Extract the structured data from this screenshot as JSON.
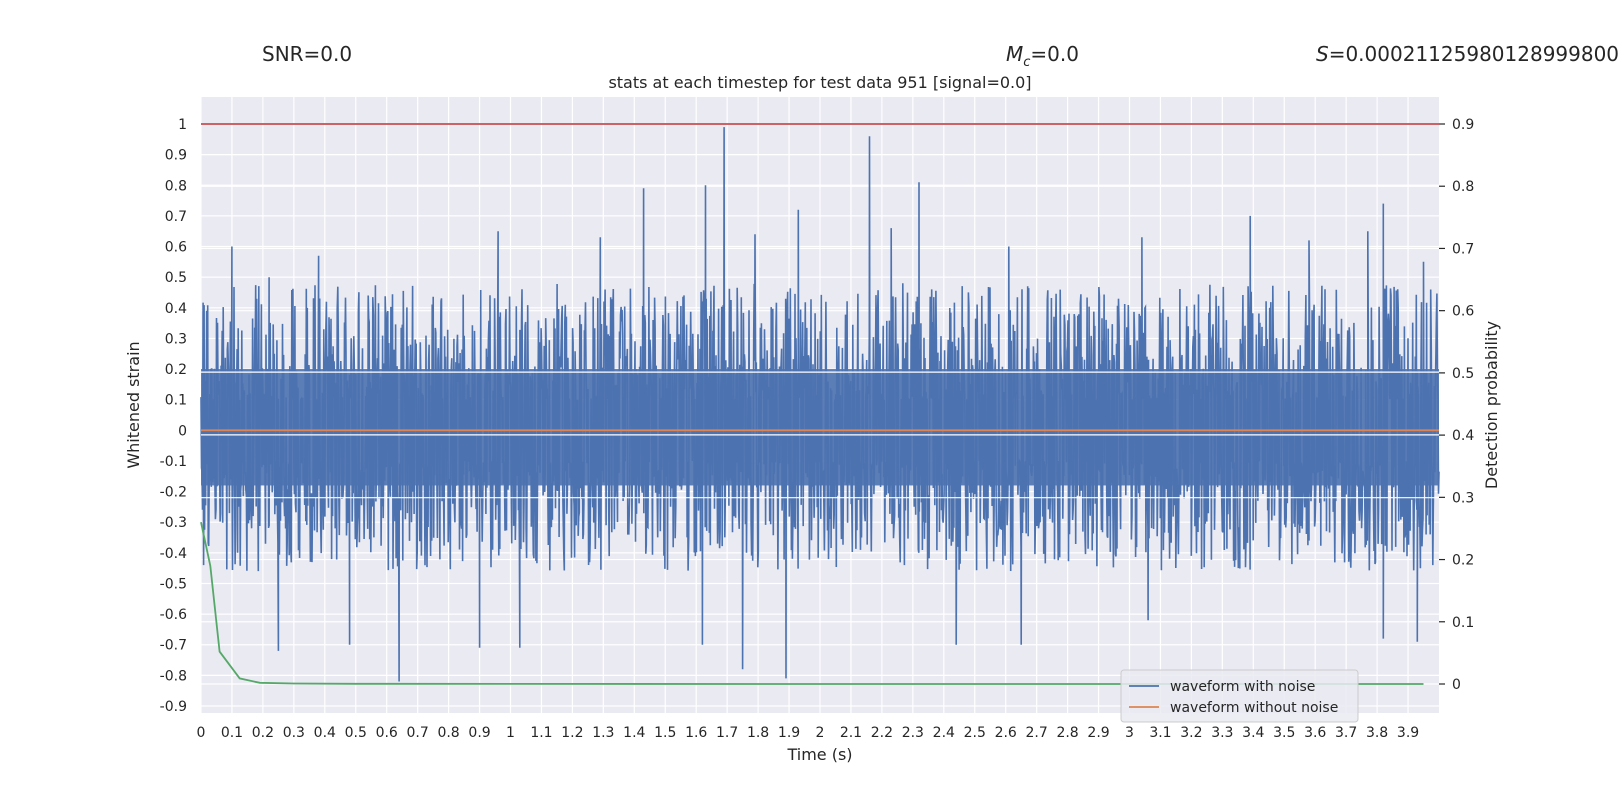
{
  "headers": {
    "snr": "SNR=0.0",
    "mc_symbol": "M",
    "mc_sub": "c",
    "mc_value": "=0.0",
    "s_symbol": "S",
    "s_value": "=0.00021125980128999800"
  },
  "colors": {
    "noisy": "#4c72b0",
    "clean": "#dd8452",
    "prob": "#55a868",
    "threshold": "#c44e52",
    "plot_bg": "#eaeaf2",
    "grid": "#ffffff"
  },
  "chart_data": {
    "type": "line",
    "title": "stats at each timestep for test data 951 [signal=0.0]",
    "xlabel": "Time (s)",
    "ylabel": "Whitened strain",
    "y2label": "Detection probability",
    "xlim": [
      0.0,
      4.0
    ],
    "ylim": [
      -0.9,
      1.0
    ],
    "y2lim": [
      -0.04,
      0.92
    ],
    "x_ticks": [
      0.0,
      0.1,
      0.2,
      0.3,
      0.4,
      0.5,
      0.6,
      0.7,
      0.8,
      0.9,
      1.0,
      1.1,
      1.2,
      1.3,
      1.4,
      1.5,
      1.6,
      1.7,
      1.8,
      1.9,
      2.0,
      2.1,
      2.2,
      2.3,
      2.4,
      2.5,
      2.6,
      2.7,
      2.8,
      2.9,
      3.0,
      3.1,
      3.2,
      3.3,
      3.4,
      3.5,
      3.6,
      3.7,
      3.8,
      3.9
    ],
    "y_ticks": [
      -0.9,
      -0.8,
      -0.7,
      -0.6,
      -0.5,
      -0.4,
      -0.3,
      -0.2,
      -0.1,
      0.0,
      0.1,
      0.2,
      0.3,
      0.4,
      0.5,
      0.6,
      0.7,
      0.8,
      0.9,
      1.0
    ],
    "y2_ticks": [
      0.0,
      0.1,
      0.2,
      0.3,
      0.4,
      0.5,
      0.6,
      0.7,
      0.8,
      0.9
    ],
    "grid": true,
    "legend_position": "bottom-right",
    "series": [
      {
        "name": "waveform with noise",
        "axis": "left",
        "style": "dense-noise",
        "x_range": [
          0.0,
          4.0
        ],
        "peaks": [
          {
            "x": 0.1,
            "y": 0.6
          },
          {
            "x": 0.22,
            "y": 0.5
          },
          {
            "x": 0.38,
            "y": 0.57
          },
          {
            "x": 0.96,
            "y": 0.65
          },
          {
            "x": 1.29,
            "y": 0.63
          },
          {
            "x": 1.43,
            "y": 0.79
          },
          {
            "x": 1.63,
            "y": 0.8
          },
          {
            "x": 1.69,
            "y": 0.99
          },
          {
            "x": 1.79,
            "y": 0.64
          },
          {
            "x": 1.93,
            "y": 0.72
          },
          {
            "x": 2.16,
            "y": 0.96
          },
          {
            "x": 2.23,
            "y": 0.66
          },
          {
            "x": 2.32,
            "y": 0.81
          },
          {
            "x": 2.61,
            "y": 0.6
          },
          {
            "x": 3.04,
            "y": 0.63
          },
          {
            "x": 3.39,
            "y": 0.7
          },
          {
            "x": 3.58,
            "y": 0.62
          },
          {
            "x": 3.77,
            "y": 0.65
          },
          {
            "x": 3.82,
            "y": 0.74
          },
          {
            "x": 3.95,
            "y": 0.55
          }
        ],
        "troughs": [
          {
            "x": 0.25,
            "y": -0.72
          },
          {
            "x": 0.48,
            "y": -0.7
          },
          {
            "x": 0.64,
            "y": -0.82
          },
          {
            "x": 0.9,
            "y": -0.71
          },
          {
            "x": 1.03,
            "y": -0.71
          },
          {
            "x": 1.62,
            "y": -0.7
          },
          {
            "x": 1.75,
            "y": -0.78
          },
          {
            "x": 1.89,
            "y": -0.81
          },
          {
            "x": 2.44,
            "y": -0.7
          },
          {
            "x": 2.65,
            "y": -0.7
          },
          {
            "x": 3.06,
            "y": -0.62
          },
          {
            "x": 3.82,
            "y": -0.68
          },
          {
            "x": 3.93,
            "y": -0.69
          }
        ]
      },
      {
        "name": "waveform without noise",
        "axis": "left",
        "x": [
          0.0,
          4.0
        ],
        "y": [
          0.0,
          0.0
        ]
      },
      {
        "axis": "right",
        "x": [
          0.0,
          0.03,
          0.06,
          0.125,
          0.19,
          0.3,
          0.5,
          1.0,
          2.0,
          3.0,
          3.95
        ],
        "y": [
          0.26,
          0.19,
          0.052,
          0.009,
          0.002,
          0.0008,
          0.0003,
          0.0001,
          0.0,
          0.0,
          0.0
        ]
      },
      {
        "axis": "right",
        "x": [
          0.0,
          4.0
        ],
        "y": [
          0.9,
          0.9
        ]
      }
    ]
  }
}
